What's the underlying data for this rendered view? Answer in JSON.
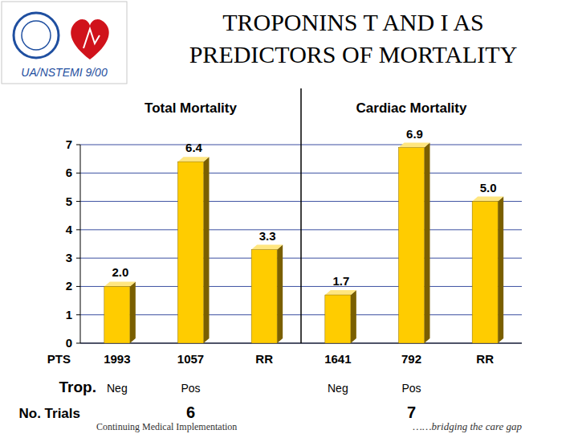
{
  "header": {
    "badge": "UA/NSTEMI 9/00"
  },
  "chart_data": {
    "type": "bar",
    "title": "TROPONINS T AND I AS PREDICTORS OF MORTALITY",
    "groups": [
      {
        "label": "Total Mortality",
        "trials": 6
      },
      {
        "label": "Cardiac Mortality",
        "trials": 7
      }
    ],
    "row_labels": {
      "categories": "PTS",
      "troponin": "Trop.",
      "trials": "No. Trials"
    },
    "categories": [
      "1993",
      "1057",
      "RR",
      "1641",
      "792",
      "RR"
    ],
    "troponin": [
      "Neg",
      "Pos",
      null,
      "Neg",
      "Pos",
      null
    ],
    "values": [
      2.0,
      6.4,
      3.3,
      1.7,
      6.9,
      5.0
    ],
    "value_labels": [
      "2.0",
      "6.4",
      "3.3",
      "1.7",
      "6.9",
      "5.0"
    ],
    "color": "#ffcc00",
    "ylim": [
      0,
      7
    ],
    "yticks": [
      0,
      1,
      2,
      3,
      4,
      5,
      6,
      7
    ],
    "grid": true,
    "data_labels": true
  },
  "footer": {
    "left": "Continuing Medical Implementation",
    "right": "……bridging the care gap"
  }
}
